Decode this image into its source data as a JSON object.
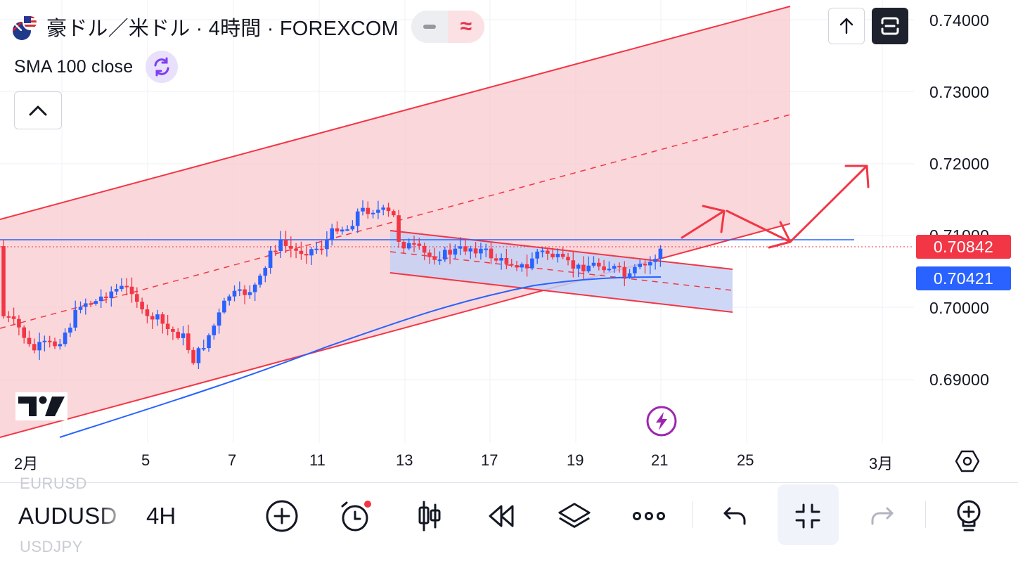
{
  "header": {
    "symbol_title": "豪ドル／米ドル · 4時間 · FOREXCOM",
    "indicator_label": "SMA 100 close"
  },
  "price_scale": {
    "labels": [
      "0.74000",
      "0.73000",
      "0.72000",
      "0.71000",
      "0.70000",
      "0.69000"
    ],
    "last_price": "0.70842",
    "sma_value": "0.70421",
    "last_price_color": "#f23645",
    "sma_color": "#2962ff"
  },
  "time_scale": {
    "labels": [
      "2月",
      "5",
      "7",
      "11",
      "13",
      "17",
      "19",
      "21",
      "25",
      "3月"
    ]
  },
  "toolbar": {
    "symbol_prev": "EURUSD",
    "symbol_current": "AUDUSD",
    "symbol_next": "USDJPY",
    "interval": "4H"
  },
  "icons": {
    "flag": "aud-usd-flag-icon",
    "compare": "compare-icon",
    "chart_type": "chart-type-icon",
    "indicator_loop": "indicator-loop-icon",
    "collapse": "chevron-up-icon",
    "scroll_top": "arrow-up-icon",
    "fullscreen": "fullscreen-icon",
    "logo": "tradingview-logo",
    "flash": "flash-icon",
    "settings": "settings-hexagon-icon",
    "add": "add-icon",
    "alert": "alert-clock-icon",
    "candles": "candlestick-icon",
    "replay": "replay-icon",
    "layers": "layers-icon",
    "more": "more-icon",
    "undo": "undo-icon",
    "exit_fullscreen": "exit-fullscreen-icon",
    "redo": "redo-icon",
    "ideas": "ideas-bulb-icon"
  }
}
